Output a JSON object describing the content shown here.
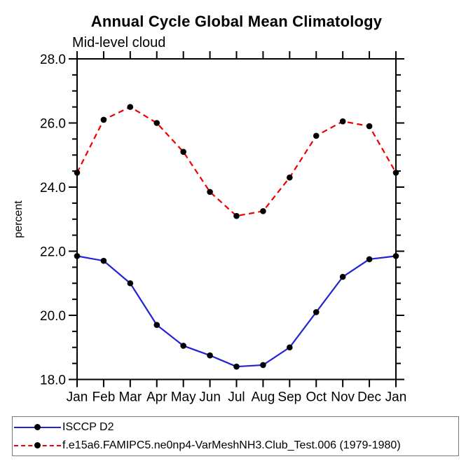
{
  "chart_data": {
    "type": "line",
    "title": "Annual Cycle Global Mean Climatology",
    "subtitle": "Mid-level cloud",
    "ylabel": "percent",
    "xlabel": "",
    "categories": [
      "Jan",
      "Feb",
      "Mar",
      "Apr",
      "May",
      "Jun",
      "Jul",
      "Aug",
      "Sep",
      "Oct",
      "Nov",
      "Dec",
      "Jan"
    ],
    "ylim": [
      18,
      28
    ],
    "yticks": [
      18,
      20,
      22,
      24,
      26,
      28
    ],
    "ytick_labels": [
      "18.0",
      "20.0",
      "22.0",
      "24.0",
      "26.0",
      "28.0"
    ],
    "y_minor_interval": 0.5,
    "grid": false,
    "legend_position": "bottom-left-box",
    "axis_color": "#000000",
    "marker": "filled-circle",
    "marker_color": "#000000",
    "series": [
      {
        "name": "ISCCP D2",
        "color": "#2222d6",
        "style": "solid",
        "values": [
          21.85,
          21.7,
          21.0,
          19.7,
          19.05,
          18.75,
          18.4,
          18.45,
          19.0,
          20.1,
          21.2,
          21.75,
          21.85
        ]
      },
      {
        "name": "f.e15a6.FAMIPC5.ne0np4-VarMeshNH3.Club_Test.006 (1979-1980)",
        "color": "#ee0000",
        "style": "dashed",
        "values": [
          24.45,
          26.1,
          26.5,
          26.0,
          25.1,
          23.85,
          23.1,
          23.25,
          24.3,
          25.6,
          26.05,
          25.9,
          24.45
        ]
      }
    ]
  }
}
